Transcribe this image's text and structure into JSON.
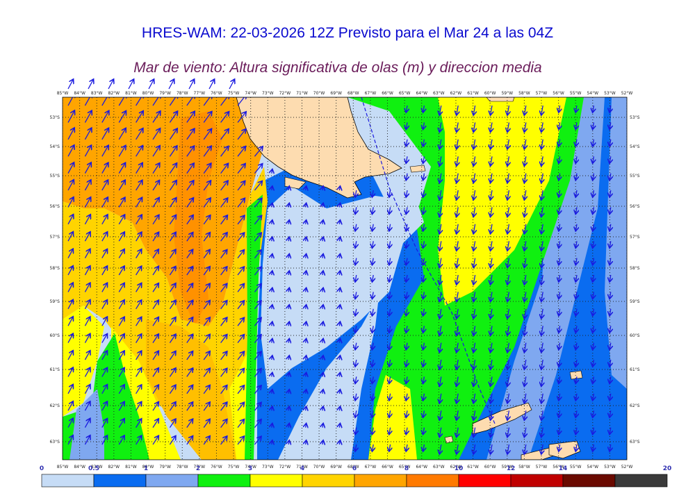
{
  "header": {
    "title": "HRES-WAM: 22-03-2026 12Z Previsto para el Mar 24 a las 04Z",
    "subtitle": "Mar de viento: Altura significativa de olas (m) y direccion media"
  },
  "map": {
    "lon_labels": [
      "85°W",
      "84°W",
      "83°W",
      "82°W",
      "81°W",
      "80°W",
      "79°W",
      "78°W",
      "77°W",
      "76°W",
      "75°W",
      "74°W",
      "73°W",
      "72°W",
      "71°W",
      "70°W",
      "69°W",
      "68°W",
      "67°W",
      "66°W",
      "65°W",
      "64°W",
      "63°W",
      "62°W",
      "61°W",
      "60°W",
      "59°W",
      "58°W",
      "57°W",
      "56°W",
      "55°W",
      "54°W",
      "53°W",
      "52°W"
    ],
    "lat_labels": [
      "53°S",
      "54°S",
      "55°S",
      "56°S",
      "57°S",
      "58°S",
      "59°S",
      "60°S",
      "61°S",
      "62°S",
      "63°S"
    ],
    "colors": {
      "land": "#fddcb0",
      "sea_bg": "#c6dcf6"
    }
  },
  "colorbar": {
    "labels": [
      "0",
      "0.5",
      "1",
      "2",
      "3",
      "4",
      "6",
      "8",
      "10",
      "12",
      "14",
      "20"
    ],
    "colors": [
      "#c6dcf6",
      "#0a6cf0",
      "#7fa8f0",
      "#10f010",
      "#ffff00",
      "#ffd400",
      "#ffa500",
      "#ff7a00",
      "#ff0000",
      "#c00000",
      "#6a0a00",
      "#3a3a3a"
    ]
  }
}
